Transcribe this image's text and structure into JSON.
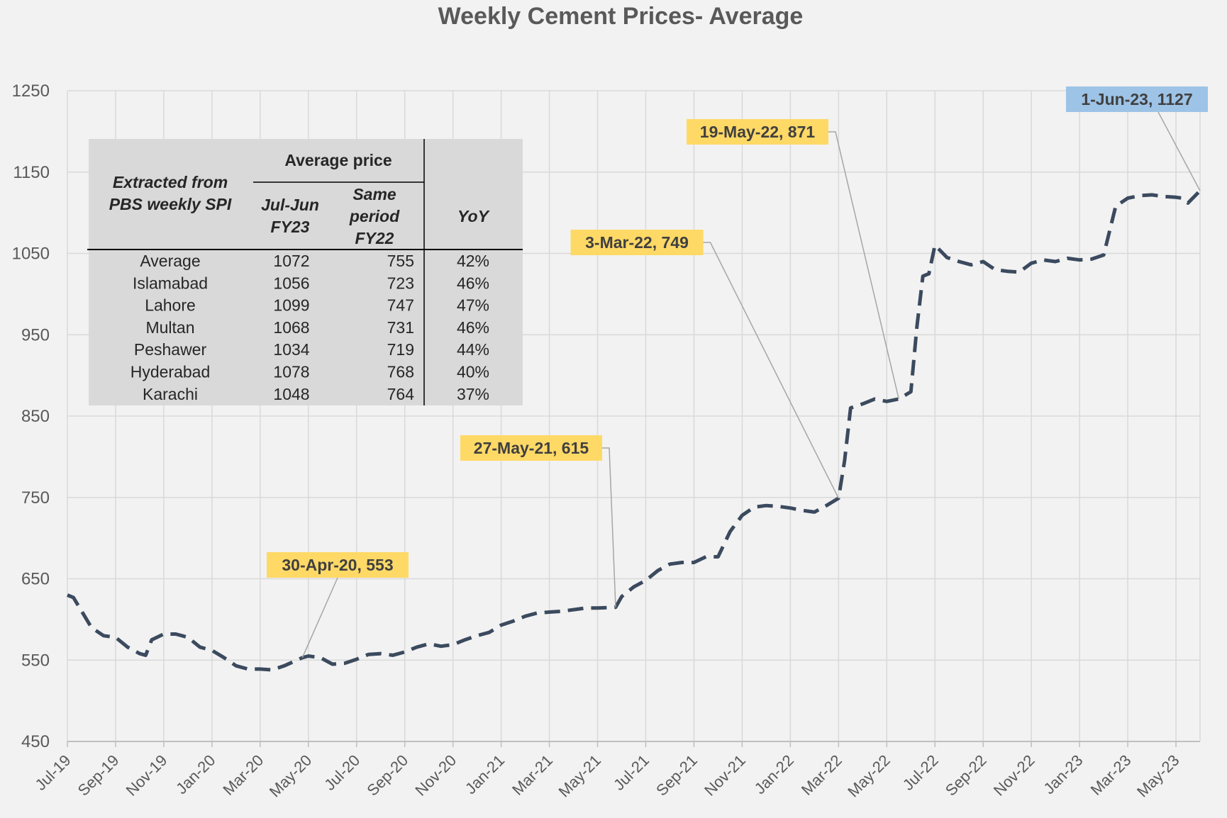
{
  "chart_data": {
    "type": "line",
    "title": "Weekly Cement Prices- Average",
    "xlabel": "",
    "ylabel": "",
    "ylim": [
      450,
      1250
    ],
    "yticks": [
      450,
      550,
      650,
      750,
      850,
      950,
      1050,
      1150,
      1250
    ],
    "xticks": [
      "Jul-19",
      "Sep-19",
      "Nov-19",
      "Jan-20",
      "Mar-20",
      "May-20",
      "Jul-20",
      "Sep-20",
      "Nov-20",
      "Jan-21",
      "Mar-21",
      "May-21",
      "Jul-21",
      "Sep-21",
      "Nov-21",
      "Jan-22",
      "Mar-22",
      "May-22",
      "Jul-22",
      "Sep-22",
      "Nov-22",
      "Jan-23",
      "Mar-23",
      "May-23"
    ],
    "grid": true,
    "line_color": "#3b4a5e",
    "series": [
      {
        "points": [
          [
            "Jul-19",
            630
          ],
          [
            "Jul-19 w2",
            627
          ],
          [
            "Aug-19",
            590
          ],
          [
            "Aug-19 w3",
            580
          ],
          [
            "Sep-19",
            578
          ],
          [
            "Sep-19 w3",
            566
          ],
          [
            "Oct-19",
            558
          ],
          [
            "Oct-19 w2",
            556
          ],
          [
            "Oct-19 w3",
            575
          ],
          [
            "Nov-19",
            582
          ],
          [
            "Nov-19 w3",
            582
          ],
          [
            "Dec-19",
            578
          ],
          [
            "Dec-19 w3",
            566
          ],
          [
            "Jan-20",
            562
          ],
          [
            "Jan-20 w3",
            553
          ],
          [
            "Feb-20",
            543
          ],
          [
            "Feb-20 w3",
            539
          ],
          [
            "Mar-20",
            539
          ],
          [
            "Mar-20 w3",
            538
          ],
          [
            "Apr-20",
            543
          ],
          [
            "Apr-20 w4",
            553
          ],
          [
            "May-20",
            555
          ],
          [
            "May-20 w3",
            553
          ],
          [
            "Jun-20",
            545
          ],
          [
            "Jun-20 w3",
            546
          ],
          [
            "Jul-20",
            551
          ],
          [
            "Jul-20 w3",
            557
          ],
          [
            "Aug-20",
            558
          ],
          [
            "Aug-20 w3",
            556
          ],
          [
            "Sep-20",
            560
          ],
          [
            "Sep-20 w3",
            566
          ],
          [
            "Oct-20",
            570
          ],
          [
            "Oct-20 w3",
            567
          ],
          [
            "Nov-20",
            569
          ],
          [
            "Nov-20 w3",
            575
          ],
          [
            "Dec-20",
            580
          ],
          [
            "Dec-20 w3",
            584
          ],
          [
            "Jan-21",
            593
          ],
          [
            "Jan-21 w3",
            598
          ],
          [
            "Feb-21",
            604
          ],
          [
            "Feb-21 w3",
            608
          ],
          [
            "Mar-21",
            609
          ],
          [
            "Mar-21 w3",
            610
          ],
          [
            "Apr-21",
            612
          ],
          [
            "Apr-21 w3",
            614
          ],
          [
            "May-21",
            614
          ],
          [
            "May-21 w4",
            615
          ],
          [
            "Jun-21",
            628
          ],
          [
            "Jun-21 w3",
            640
          ],
          [
            "Jul-21",
            648
          ],
          [
            "Jul-21 w3",
            660
          ],
          [
            "Aug-21",
            668
          ],
          [
            "Aug-21 w3",
            670
          ],
          [
            "Sep-21",
            670
          ],
          [
            "Sep-21 w3",
            677
          ],
          [
            "Oct-21",
            677
          ],
          [
            "Oct-21 w3",
            708
          ],
          [
            "Nov-21",
            728
          ],
          [
            "Nov-21 w3",
            738
          ],
          [
            "Dec-21",
            740
          ],
          [
            "Dec-21 w3",
            739
          ],
          [
            "Jan-22",
            737
          ],
          [
            "Jan-22 w3",
            734
          ],
          [
            "Feb-22",
            732
          ],
          [
            "Feb-22 w3",
            740
          ],
          [
            "Mar-22",
            749
          ],
          [
            "Mar-22 w2",
            795
          ],
          [
            "Mar-22 w3",
            860
          ],
          [
            "Apr-22",
            865
          ],
          [
            "Apr-22 w3",
            871
          ],
          [
            "May-22",
            868
          ],
          [
            "May-22 w3",
            871
          ],
          [
            "Jun-22",
            880
          ],
          [
            "Jun-22 w2",
            960
          ],
          [
            "Jun-22 w3",
            1022
          ],
          [
            "Jun-22 w4",
            1025
          ],
          [
            "Jul-22",
            1060
          ],
          [
            "Jul-22 w3",
            1045
          ],
          [
            "Aug-22",
            1040
          ],
          [
            "Aug-22 w3",
            1036
          ],
          [
            "Sep-22",
            1040
          ],
          [
            "Sep-22 w3",
            1030
          ],
          [
            "Oct-22",
            1028
          ],
          [
            "Oct-22 w3",
            1027
          ],
          [
            "Nov-22",
            1038
          ],
          [
            "Nov-22 w3",
            1042
          ],
          [
            "Dec-22",
            1040
          ],
          [
            "Dec-22 w3",
            1044
          ],
          [
            "Jan-23",
            1042
          ],
          [
            "Jan-23 w3",
            1043
          ],
          [
            "Feb-23",
            1048
          ],
          [
            "Feb-23 w2",
            1078
          ],
          [
            "Feb-23 w3",
            1108
          ],
          [
            "Mar-23",
            1118
          ],
          [
            "Mar-23 w3",
            1121
          ],
          [
            "Apr-23",
            1122
          ],
          [
            "Apr-23 w3",
            1120
          ],
          [
            "May-23",
            1119
          ],
          [
            "May-23 w2",
            1118
          ],
          [
            "May-23 w3",
            1112
          ],
          [
            "Jun-23",
            1127
          ]
        ]
      }
    ],
    "annotations": [
      {
        "label": "30-Apr-20, 553",
        "x": "Apr-20 w4",
        "y": 553,
        "color": "#ffd966"
      },
      {
        "label": "27-May-21, 615",
        "x": "May-21 w4",
        "y": 615,
        "color": "#ffd966"
      },
      {
        "label": "3-Mar-22, 749",
        "x": "Mar-22",
        "y": 749,
        "color": "#ffd966"
      },
      {
        "label": "19-May-22, 871",
        "x": "May-22 w3",
        "y": 871,
        "color": "#ffd966"
      },
      {
        "label": "1-Jun-23, 1127",
        "x": "Jun-23",
        "y": 1127,
        "color": "#9dc3e6"
      }
    ]
  },
  "table": {
    "header_left": [
      "Extracted from",
      "PBS weekly SPI"
    ],
    "header_group": "Average price",
    "col_cur": [
      "Jul-Jun",
      "FY23"
    ],
    "col_prev": [
      "Same",
      "period",
      "FY22"
    ],
    "col_yoy": "YoY",
    "rows": [
      {
        "city": "Average",
        "fy23": "1072",
        "fy22": "755",
        "yoy": "42%"
      },
      {
        "city": "Islamabad",
        "fy23": "1056",
        "fy22": "723",
        "yoy": "46%"
      },
      {
        "city": "Lahore",
        "fy23": "1099",
        "fy22": "747",
        "yoy": "47%"
      },
      {
        "city": "Multan",
        "fy23": "1068",
        "fy22": "731",
        "yoy": "46%"
      },
      {
        "city": "Peshawer",
        "fy23": "1034",
        "fy22": "719",
        "yoy": "44%"
      },
      {
        "city": "Hyderabad",
        "fy23": "1078",
        "fy22": "768",
        "yoy": "40%"
      },
      {
        "city": "Karachi",
        "fy23": "1048",
        "fy22": "764",
        "yoy": "37%"
      }
    ]
  }
}
